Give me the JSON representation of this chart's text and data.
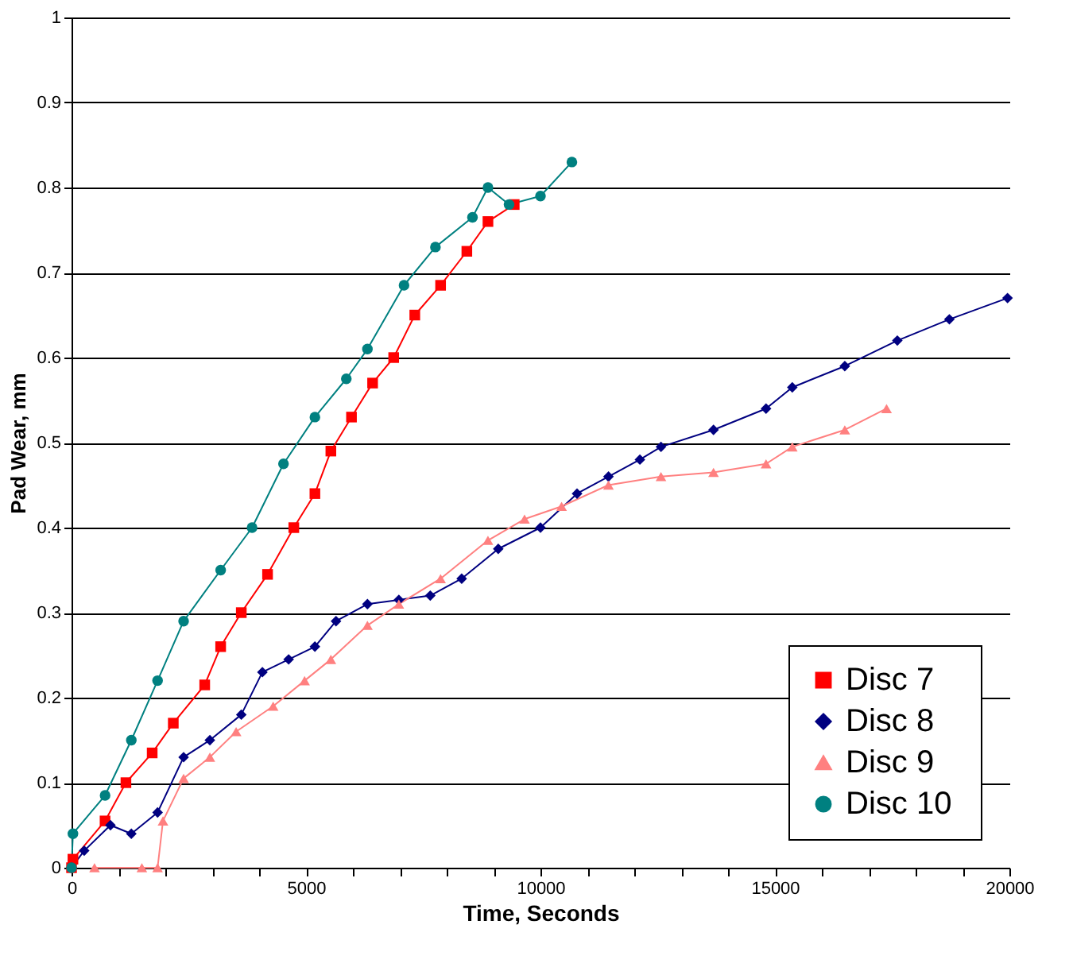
{
  "chart_data": {
    "type": "line",
    "xlabel": "Time,  Seconds",
    "ylabel": "Pad Wear,  mm",
    "xlim": [
      0,
      20000
    ],
    "ylim": [
      0,
      1
    ],
    "xticks": [
      0,
      {
        "value": 1000,
        "label": null
      },
      {
        "value": 2000,
        "label": null
      },
      {
        "value": 3000,
        "label": null
      },
      {
        "value": 4000,
        "label": null
      },
      5000,
      {
        "value": 6000,
        "label": null
      },
      {
        "value": 7000,
        "label": null
      },
      {
        "value": 8000,
        "label": null
      },
      {
        "value": 9000,
        "label": null
      },
      10000,
      {
        "value": 11000,
        "label": null
      },
      {
        "value": 12000,
        "label": null
      },
      {
        "value": 13000,
        "label": null
      },
      {
        "value": 14000,
        "label": null
      },
      15000,
      {
        "value": 16000,
        "label": null
      },
      {
        "value": 17000,
        "label": null
      },
      {
        "value": 18000,
        "label": null
      },
      {
        "value": 19000,
        "label": null
      },
      20000
    ],
    "yticks": [
      0,
      0.1,
      0.2,
      0.3,
      0.4,
      0.5,
      0.6,
      0.7,
      0.8,
      0.9,
      1
    ],
    "grid": "y",
    "legend": "bottom right",
    "series": [
      {
        "name": "Disc 7",
        "color": "#ff0000",
        "marker": "square",
        "x": [
          0,
          30,
          715,
          1160,
          1720,
          2170,
          2840,
          3180,
          3620,
          4180,
          4740,
          5190,
          5530,
          5970,
          6420,
          6870,
          7320,
          7870,
          8430,
          8880,
          9440
        ],
        "values": [
          0,
          0.01,
          0.055,
          0.1,
          0.135,
          0.17,
          0.215,
          0.26,
          0.3,
          0.345,
          0.4,
          0.44,
          0.49,
          0.53,
          0.57,
          0.6,
          0.65,
          0.685,
          0.725,
          0.76,
          0.78
        ]
      },
      {
        "name": "Disc  8",
        "color": "#000080",
        "marker": "diamond",
        "x": [
          0,
          270,
          830,
          1275,
          1835,
          2390,
          2950,
          3620,
          4070,
          4630,
          5190,
          5640,
          6310,
          6980,
          7650,
          8320,
          9100,
          10000,
          10780,
          11450,
          12120,
          12570,
          13690,
          14810,
          15370,
          16490,
          17610,
          18720,
          19960
        ],
        "values": [
          0,
          0.02,
          0.05,
          0.04,
          0.065,
          0.13,
          0.15,
          0.18,
          0.23,
          0.245,
          0.26,
          0.29,
          0.31,
          0.315,
          0.32,
          0.34,
          0.375,
          0.4,
          0.44,
          0.46,
          0.48,
          0.495,
          0.515,
          0.54,
          0.565,
          0.59,
          0.62,
          0.645,
          0.67
        ]
      },
      {
        "name": "Disc  9",
        "color": "#ff8080",
        "marker": "triangle",
        "x": [
          490,
          1500,
          1835,
          1950,
          2390,
          2950,
          3510,
          4300,
          4970,
          5530,
          6310,
          6980,
          7870,
          8880,
          9660,
          10450,
          11450,
          12570,
          13690,
          14810,
          15370,
          16490,
          17380
        ],
        "values": [
          0,
          0,
          0,
          0.055,
          0.105,
          0.13,
          0.16,
          0.19,
          0.22,
          0.245,
          0.285,
          0.31,
          0.34,
          0.385,
          0.41,
          0.425,
          0.45,
          0.46,
          0.465,
          0.475,
          0.495,
          0.515,
          0.54
        ]
      },
      {
        "name": "Disc  10",
        "color": "#008080",
        "marker": "circle",
        "x": [
          0,
          30,
          715,
          1275,
          1835,
          2390,
          3180,
          3850,
          4520,
          5190,
          5860,
          6310,
          7090,
          7760,
          8550,
          8880,
          9330,
          10000,
          10670
        ],
        "values": [
          0,
          0.04,
          0.085,
          0.15,
          0.22,
          0.29,
          0.35,
          0.4,
          0.475,
          0.53,
          0.575,
          0.61,
          0.685,
          0.73,
          0.765,
          0.8,
          0.78,
          0.79,
          0.83
        ]
      }
    ]
  }
}
